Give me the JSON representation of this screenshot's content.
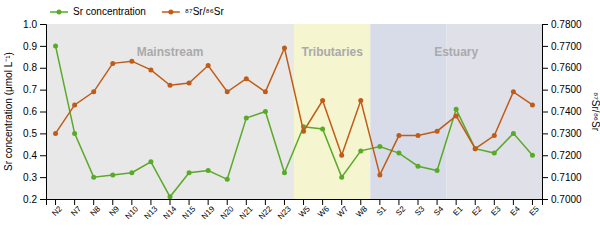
{
  "chart_data": {
    "type": "line",
    "categories": [
      "N2",
      "N7",
      "N8",
      "N9",
      "N10",
      "N13",
      "N14",
      "N15",
      "N19",
      "N20",
      "N21",
      "N22",
      "N23",
      "W5",
      "W6",
      "W7",
      "W8",
      "S1",
      "S2",
      "S3",
      "S4",
      "E1",
      "E2",
      "E3",
      "E4",
      "E5"
    ],
    "series": [
      {
        "name": "Sr concentration",
        "color": "#5aaa2a",
        "marker": "circle",
        "values": [
          0.9,
          0.5,
          0.3,
          0.31,
          0.32,
          0.37,
          0.21,
          0.32,
          0.33,
          0.29,
          0.57,
          0.6,
          0.32,
          0.53,
          0.52,
          0.3,
          0.42,
          0.44,
          0.41,
          0.35,
          0.33,
          0.61,
          0.43,
          0.41,
          0.5,
          0.4
        ]
      },
      {
        "name": "⁸⁷Sr/⁸⁶Sr",
        "color": "#c05c18",
        "marker": "circle",
        "axis": "y2",
        "values": [
          0.73,
          0.743,
          0.749,
          0.762,
          0.763,
          0.759,
          0.752,
          0.753,
          0.761,
          0.749,
          0.755,
          0.749,
          0.769,
          0.731,
          0.745,
          0.72,
          0.745,
          0.711,
          0.729,
          0.729,
          0.731,
          0.738,
          0.723,
          0.729,
          0.749,
          0.743
        ]
      }
    ],
    "ylabel": "Sr concentration (μmol L⁻¹)",
    "y2label": "⁸⁷Sr/⁸⁶Sr",
    "ylim": [
      0.2,
      1.0
    ],
    "yticks": [
      0.2,
      0.3,
      0.4,
      0.5,
      0.6,
      0.7,
      0.8,
      0.9,
      {
        "value": 1.0,
        "label": "1.0"
      }
    ],
    "y2lim": [
      0.7,
      0.78
    ],
    "y2ticks": [
      {
        "value": 0.7,
        "label": "0.7000"
      },
      {
        "value": 0.71,
        "label": "0.7100"
      },
      {
        "value": 0.72,
        "label": "0.7200"
      },
      {
        "value": 0.73,
        "label": "0.7300"
      },
      {
        "value": 0.74,
        "label": "0.7400"
      },
      {
        "value": 0.75,
        "label": "0.7500"
      },
      {
        "value": 0.76,
        "label": "0.7600"
      },
      {
        "value": 0.77,
        "label": "0.7700"
      },
      {
        "value": 0.78,
        "label": "0.7800"
      }
    ],
    "regions": [
      {
        "start": "N2",
        "end": "N23",
        "color": "#e8e8e8"
      },
      {
        "start": "W5",
        "end": "W8",
        "color": "#f5f5d0"
      },
      {
        "start": "S1",
        "end": "S4",
        "color": "#d8dce8"
      },
      {
        "start": "E1",
        "end": "E5",
        "color": "#e0e0e8"
      }
    ],
    "annotations": [
      {
        "text": "Mainstream",
        "start": "N2",
        "end": "N23",
        "y": 0.87,
        "color": "#aaaaaa"
      },
      {
        "text": "Tributaries",
        "start": "W5",
        "end": "W8",
        "y": 0.87,
        "color": "#aaaaaa"
      },
      {
        "text": "Estuary",
        "start": "S1",
        "end": "E5",
        "y": 0.87,
        "color": "#aaaaaa"
      }
    ],
    "legend": "upper left",
    "grid": false
  }
}
